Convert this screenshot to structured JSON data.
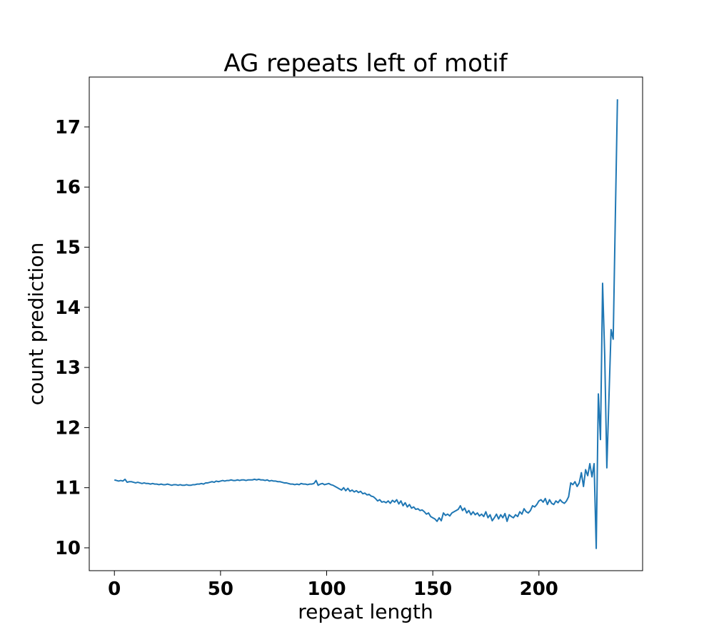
{
  "chart_data": {
    "type": "line",
    "title": "AG repeats left of motif",
    "x_label": "repeat length",
    "y_label": "count prediction",
    "x": [
      0,
      1,
      2,
      3,
      4,
      5,
      6,
      7,
      8,
      9,
      10,
      11,
      12,
      13,
      14,
      15,
      16,
      17,
      18,
      19,
      20,
      21,
      22,
      23,
      24,
      25,
      26,
      27,
      28,
      29,
      30,
      31,
      32,
      33,
      34,
      35,
      36,
      37,
      38,
      39,
      40,
      41,
      42,
      43,
      44,
      45,
      46,
      47,
      48,
      49,
      50,
      51,
      52,
      53,
      54,
      55,
      56,
      57,
      58,
      59,
      60,
      61,
      62,
      63,
      64,
      65,
      66,
      67,
      68,
      69,
      70,
      71,
      72,
      73,
      74,
      75,
      76,
      77,
      78,
      79,
      80,
      81,
      82,
      83,
      84,
      85,
      86,
      87,
      88,
      89,
      90,
      91,
      92,
      93,
      94,
      95,
      96,
      97,
      98,
      99,
      100,
      101,
      102,
      103,
      104,
      105,
      106,
      107,
      108,
      109,
      110,
      111,
      112,
      113,
      114,
      115,
      116,
      117,
      118,
      119,
      120,
      121,
      122,
      123,
      124,
      125,
      126,
      127,
      128,
      129,
      130,
      131,
      132,
      133,
      134,
      135,
      136,
      137,
      138,
      139,
      140,
      141,
      142,
      143,
      144,
      145,
      146,
      147,
      148,
      149,
      150,
      151,
      152,
      153,
      154,
      155,
      156,
      157,
      158,
      159,
      160,
      161,
      162,
      163,
      164,
      165,
      166,
      167,
      168,
      169,
      170,
      171,
      172,
      173,
      174,
      175,
      176,
      177,
      178,
      179,
      180,
      181,
      182,
      183,
      184,
      185,
      186,
      187,
      188,
      189,
      190,
      191,
      192,
      193,
      194,
      195,
      196,
      197,
      198,
      199,
      200,
      201,
      202,
      203,
      204,
      205,
      206,
      207,
      208,
      209,
      210,
      211,
      212,
      213,
      214,
      215,
      216,
      217,
      218,
      219,
      220,
      221,
      222,
      223,
      224,
      225,
      226,
      227,
      228,
      229,
      230,
      231,
      232,
      233,
      234,
      235,
      236,
      237
    ],
    "series": [
      {
        "name": "count prediction",
        "color": "#1f77b4",
        "values": [
          11.13,
          11.12,
          11.11,
          11.12,
          11.11,
          11.14,
          11.09,
          11.1,
          11.1,
          11.09,
          11.08,
          11.09,
          11.08,
          11.07,
          11.08,
          11.07,
          11.07,
          11.06,
          11.07,
          11.06,
          11.06,
          11.05,
          11.06,
          11.05,
          11.05,
          11.06,
          11.05,
          11.04,
          11.05,
          11.05,
          11.04,
          11.05,
          11.04,
          11.04,
          11.05,
          11.04,
          11.04,
          11.05,
          11.05,
          11.06,
          11.06,
          11.07,
          11.06,
          11.08,
          11.08,
          11.09,
          11.1,
          11.09,
          11.11,
          11.1,
          11.11,
          11.12,
          11.11,
          11.12,
          11.12,
          11.13,
          11.12,
          11.12,
          11.13,
          11.12,
          11.13,
          11.13,
          11.12,
          11.13,
          11.13,
          11.13,
          11.14,
          11.13,
          11.14,
          11.13,
          11.13,
          11.12,
          11.13,
          11.11,
          11.12,
          11.11,
          11.11,
          11.1,
          11.1,
          11.09,
          11.08,
          11.08,
          11.07,
          11.06,
          11.06,
          11.05,
          11.06,
          11.05,
          11.07,
          11.06,
          11.06,
          11.05,
          11.06,
          11.06,
          11.07,
          11.12,
          11.04,
          11.06,
          11.07,
          11.05,
          11.06,
          11.07,
          11.05,
          11.04,
          11.02,
          11.0,
          10.98,
          10.96,
          11.0,
          10.95,
          10.99,
          10.94,
          10.96,
          10.93,
          10.95,
          10.92,
          10.94,
          10.9,
          10.91,
          10.88,
          10.89,
          10.86,
          10.85,
          10.82,
          10.78,
          10.8,
          10.76,
          10.77,
          10.75,
          10.78,
          10.74,
          10.79,
          10.76,
          10.8,
          10.73,
          10.78,
          10.7,
          10.75,
          10.68,
          10.72,
          10.66,
          10.68,
          10.64,
          10.65,
          10.62,
          10.63,
          10.6,
          10.56,
          10.58,
          10.52,
          10.5,
          10.48,
          10.44,
          10.5,
          10.45,
          10.58,
          10.54,
          10.56,
          10.53,
          10.58,
          10.6,
          10.62,
          10.64,
          10.7,
          10.62,
          10.66,
          10.58,
          10.62,
          10.55,
          10.6,
          10.55,
          10.58,
          10.53,
          10.56,
          10.52,
          10.6,
          10.5,
          10.55,
          10.45,
          10.5,
          10.56,
          10.48,
          10.55,
          10.5,
          10.57,
          10.44,
          10.55,
          10.52,
          10.5,
          10.55,
          10.52,
          10.6,
          10.56,
          10.65,
          10.6,
          10.58,
          10.62,
          10.7,
          10.68,
          10.72,
          10.78,
          10.8,
          10.76,
          10.82,
          10.72,
          10.8,
          10.74,
          10.72,
          10.78,
          10.75,
          10.8,
          10.76,
          10.74,
          10.78,
          10.85,
          11.08,
          11.05,
          11.1,
          11.02,
          11.08,
          11.25,
          11.02,
          11.3,
          11.2,
          11.4,
          11.18,
          11.4,
          9.99,
          12.56,
          11.8,
          14.4,
          13.2,
          11.33,
          12.5,
          13.63,
          13.47,
          15.5,
          17.46
        ]
      }
    ],
    "xlim": [
      -11.85,
      248.85
    ],
    "ylim": [
      9.62,
      17.83
    ],
    "xticks": [
      0,
      50,
      100,
      150,
      200
    ],
    "yticks": [
      10,
      11,
      12,
      13,
      14,
      15,
      16,
      17
    ],
    "grid": false
  }
}
